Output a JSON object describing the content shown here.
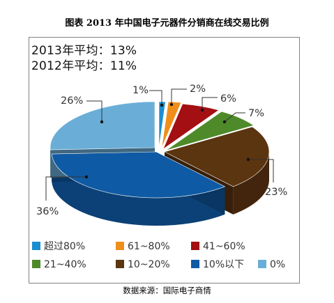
{
  "title": "图表    2013 年中国电子元器件分销商在线交易比例",
  "averages": {
    "y2013": "2013年平均：13%",
    "y2012": "2012年平均：11%"
  },
  "source": "数据来源：国际电子商情",
  "chart_data": {
    "type": "pie",
    "style": "3d-exploded",
    "slices": [
      {
        "label": "超过80%",
        "value": 1,
        "display": "1%",
        "color": "#1a8fd0"
      },
      {
        "label": "61~80%",
        "value": 2,
        "display": "2%",
        "color": "#ee8f1c"
      },
      {
        "label": "41~60%",
        "value": 6,
        "display": "6%",
        "color": "#a30f12"
      },
      {
        "label": "21~40%",
        "value": 7,
        "display": "7%",
        "color": "#4e8a2a"
      },
      {
        "label": "10~20%",
        "value": 23,
        "display": "23%",
        "color": "#5b3410"
      },
      {
        "label": "10%以下",
        "value": 36,
        "display": "36%",
        "color": "#0f5aa4"
      },
      {
        "label": "0%",
        "value": 26,
        "display": "26%",
        "color": "#6aaed8"
      }
    ],
    "legend_position": "bottom"
  }
}
